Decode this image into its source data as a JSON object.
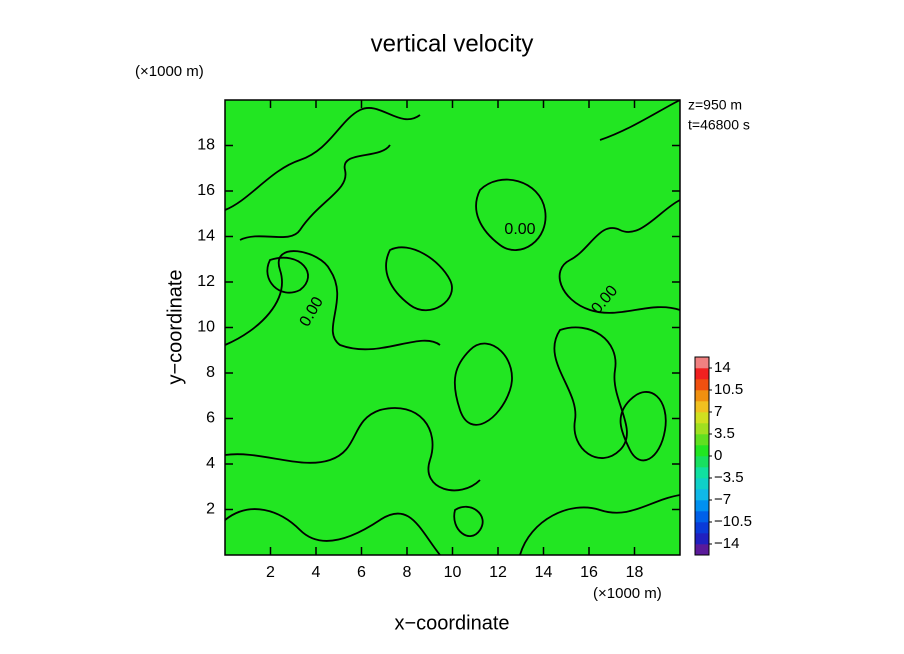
{
  "chart_data": {
    "type": "contour",
    "title": "vertical velocity",
    "x_label": "x−coordinate",
    "y_label": "y−coordinate",
    "x_unit": "(×1000 m)",
    "y_unit": "(×1000 m)",
    "annotations": [
      "z=950 m",
      "t=46800 s"
    ],
    "xlim": [
      0,
      20
    ],
    "ylim": [
      0,
      20
    ],
    "xticks": [
      2,
      4,
      6,
      8,
      10,
      12,
      14,
      16,
      18
    ],
    "yticks": [
      2,
      4,
      6,
      8,
      10,
      12,
      14,
      16,
      18
    ],
    "field_color": "#22e622",
    "contour_level": {
      "value": 0,
      "label": "0.00"
    },
    "colorbar": {
      "lim": [
        -15.75,
        15.75
      ],
      "colors": [
        "#5a1a9a",
        "#2020c0",
        "#0a3ad8",
        "#0060e8",
        "#0090f0",
        "#10b8e8",
        "#10d0c8",
        "#10e0a0",
        "#18e060",
        "#22e622",
        "#60e020",
        "#a0e020",
        "#d0e020",
        "#f0c020",
        "#f09010",
        "#f05010",
        "#f02020",
        "#f08080"
      ],
      "ticks": [
        {
          "value": 14,
          "label": "14"
        },
        {
          "value": 10.5,
          "label": "10.5"
        },
        {
          "value": 7,
          "label": "7"
        },
        {
          "value": 3.5,
          "label": "3.5"
        },
        {
          "value": 0,
          "label": "0"
        },
        {
          "value": -3.5,
          "label": "−3.5"
        },
        {
          "value": -7,
          "label": "−7"
        },
        {
          "value": -10.5,
          "label": "−10.5"
        },
        {
          "value": -14,
          "label": "−14"
        }
      ]
    }
  }
}
